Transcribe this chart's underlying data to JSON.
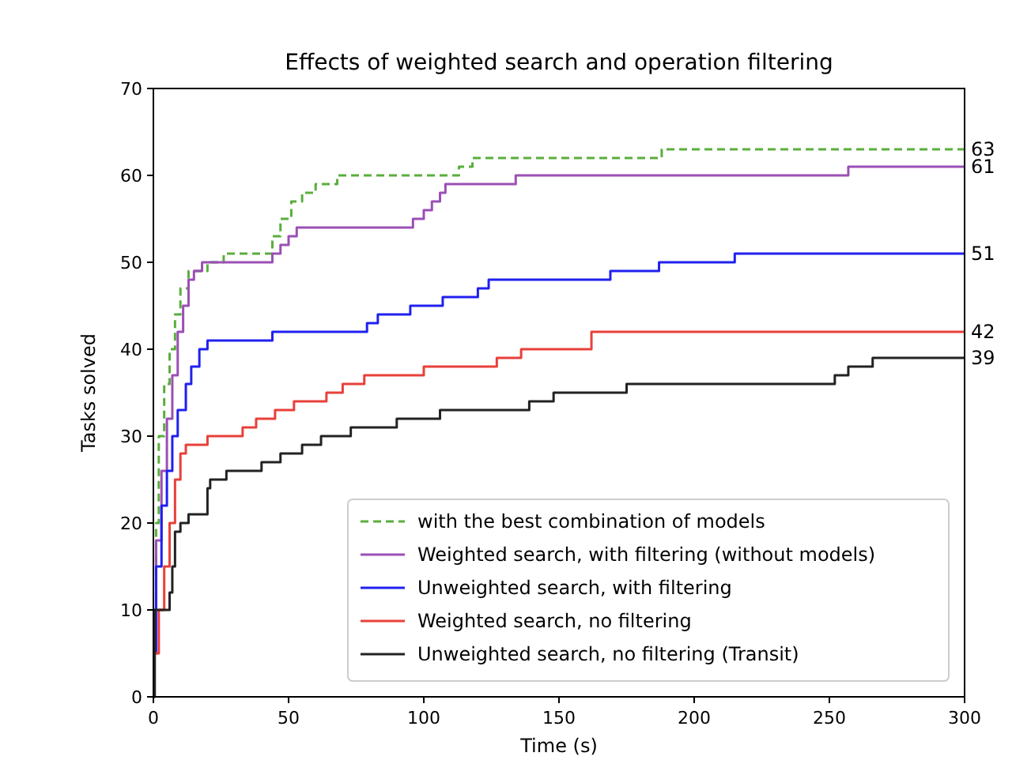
{
  "chart_data": {
    "type": "step",
    "title": "Effects of weighted search and operation filtering",
    "xlabel": "Time (s)",
    "ylabel": "Tasks solved",
    "xlim": [
      0,
      300
    ],
    "ylim": [
      0,
      70
    ],
    "xticks": [
      0,
      50,
      100,
      150,
      200,
      250,
      300
    ],
    "yticks": [
      0,
      10,
      20,
      30,
      40,
      50,
      60,
      70
    ],
    "grid": false,
    "legend": "bottom right",
    "series": [
      {
        "name": "with the best combination of models",
        "color": "#5aae3c",
        "line_style": "dashed",
        "x": [
          0,
          1,
          2,
          4,
          6,
          8,
          10,
          13,
          20,
          26,
          44,
          47,
          51,
          55,
          60,
          68,
          113,
          118,
          122,
          188,
          300
        ],
        "values": [
          10,
          20,
          30,
          36,
          40,
          44,
          47,
          49,
          50,
          51,
          53,
          55,
          57,
          58,
          59,
          60,
          61,
          62,
          62,
          63,
          63
        ],
        "value_labels": [
          null,
          null,
          null,
          null,
          null,
          null,
          null,
          null,
          null,
          null,
          null,
          null,
          null,
          null,
          null,
          null,
          null,
          null,
          null,
          null,
          "63"
        ]
      },
      {
        "name": "Weighted search, with filtering (without models)",
        "color": "#9b4fb5",
        "x": [
          0,
          1,
          3,
          5,
          7,
          9,
          11,
          13,
          15,
          18,
          44,
          47,
          50,
          53,
          96,
          100,
          103,
          106,
          108,
          134,
          257,
          300
        ],
        "values": [
          10,
          18,
          26,
          32,
          37,
          42,
          45,
          48,
          49,
          50,
          51,
          52,
          53,
          54,
          55,
          56,
          57,
          58,
          59,
          60,
          61,
          61
        ],
        "value_labels": [
          null,
          null,
          null,
          null,
          null,
          null,
          null,
          null,
          null,
          null,
          null,
          null,
          null,
          null,
          null,
          null,
          null,
          null,
          null,
          null,
          null,
          "61"
        ]
      },
      {
        "name": "Unweighted search, with filtering",
        "color": "#2020f0",
        "x": [
          0,
          1,
          3,
          5,
          7,
          9,
          12,
          14,
          17,
          20,
          44,
          79,
          83,
          95,
          107,
          120,
          124,
          169,
          187,
          215,
          300
        ],
        "values": [
          5,
          15,
          22,
          26,
          30,
          33,
          36,
          38,
          40,
          41,
          42,
          43,
          44,
          45,
          46,
          47,
          48,
          49,
          50,
          51,
          51
        ],
        "value_labels": [
          null,
          null,
          null,
          null,
          null,
          null,
          null,
          null,
          null,
          null,
          null,
          null,
          null,
          null,
          null,
          null,
          null,
          null,
          null,
          null,
          "51"
        ]
      },
      {
        "name": "Weighted search, no filtering",
        "color": "#e8403a",
        "x": [
          0,
          2,
          4,
          6,
          8,
          10,
          12,
          20,
          33,
          38,
          45,
          52,
          64,
          70,
          78,
          100,
          127,
          136,
          162,
          300
        ],
        "values": [
          5,
          10,
          15,
          20,
          25,
          28,
          29,
          30,
          31,
          32,
          33,
          34,
          35,
          36,
          37,
          38,
          39,
          40,
          42,
          42
        ],
        "value_labels": [
          null,
          null,
          null,
          null,
          null,
          null,
          null,
          null,
          null,
          null,
          null,
          null,
          null,
          null,
          null,
          null,
          null,
          null,
          null,
          "42"
        ]
      },
      {
        "name": "Unweighted search, no filtering (Transit)",
        "color": "#222222",
        "x": [
          0,
          0.5,
          6,
          7,
          8,
          10,
          13,
          20,
          21,
          27,
          40,
          47,
          55,
          62,
          73,
          90,
          106,
          139,
          148,
          175,
          252,
          257,
          266,
          300
        ],
        "values": [
          0,
          10,
          12,
          15,
          19,
          20,
          21,
          24,
          25,
          26,
          27,
          28,
          29,
          30,
          31,
          32,
          33,
          34,
          35,
          36,
          37,
          38,
          39,
          39
        ],
        "value_labels": [
          null,
          null,
          null,
          null,
          null,
          null,
          null,
          null,
          null,
          null,
          null,
          null,
          null,
          null,
          null,
          null,
          null,
          null,
          null,
          null,
          null,
          null,
          null,
          "39"
        ]
      }
    ]
  }
}
